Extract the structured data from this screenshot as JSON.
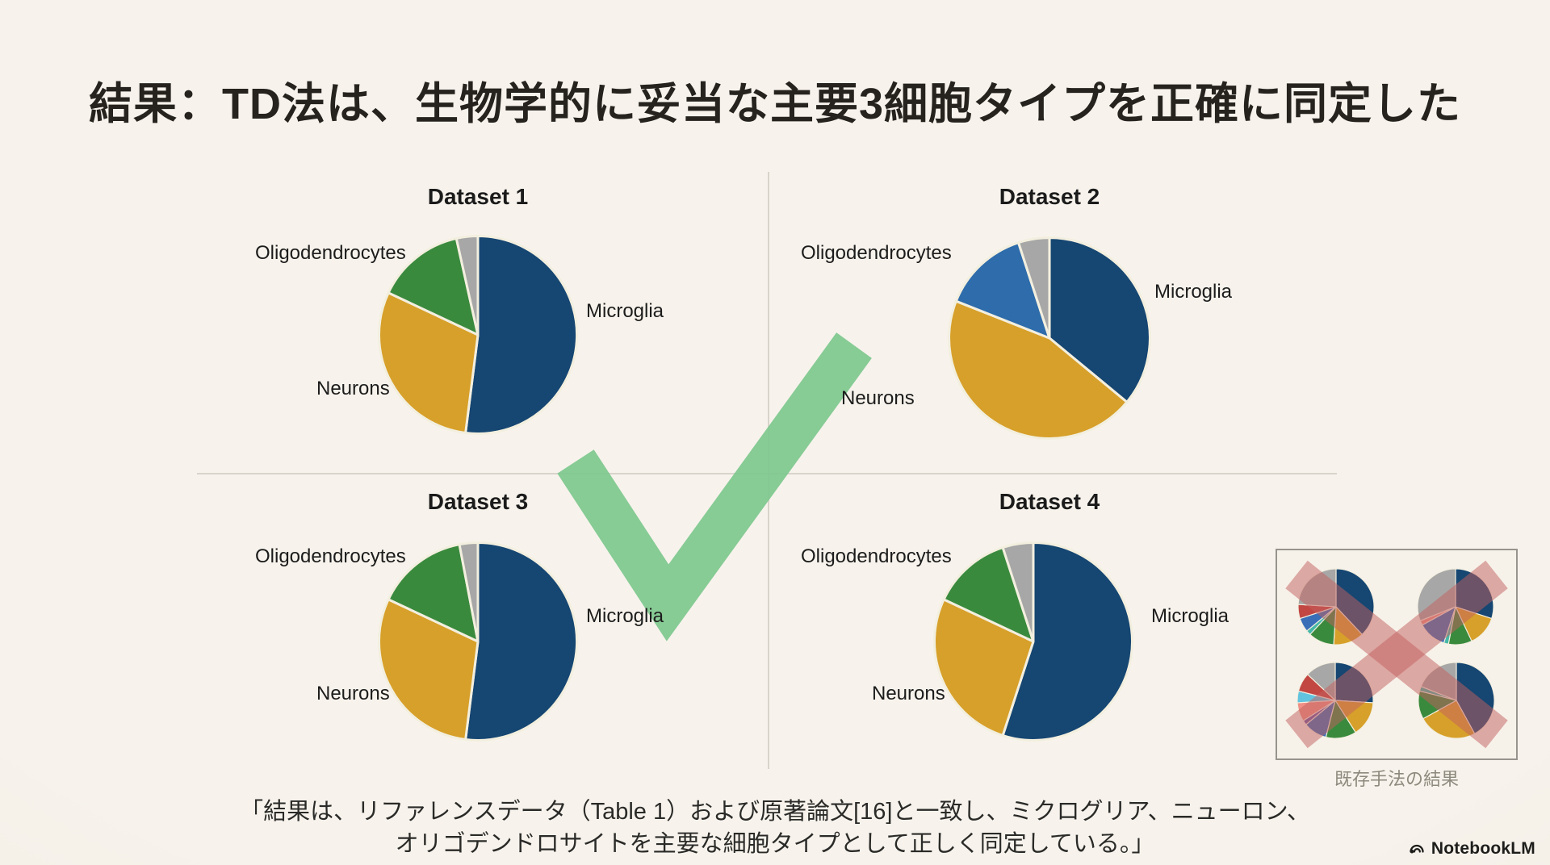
{
  "slide": {
    "title": "結果：TD法は、生物学的に妥当な主要3細胞タイプを正確に同定した",
    "caption_line1": "「結果は、リファレンスデータ（Table 1）および原著論文[16]と一致し、ミクログリア、ニューロン、",
    "caption_line2": "オリゴデンドロサイトを主要な細胞タイプとして正しく同定している。」",
    "brand": "NotebookLM"
  },
  "colors": {
    "background": "#f5f0e8",
    "navy": "#164672",
    "gold": "#d7a02a",
    "green": "#3a8a3e",
    "gray": "#a7a7a7",
    "medium_blue": "#2e6cab",
    "slice_border": "#f3efdf",
    "check_green": "#7ec78e",
    "x_red": "#c4605e",
    "divider": "#d8d4cb",
    "text_dark": "#26221e",
    "inset_caption_gray": "#8e897d"
  },
  "chart_data": {
    "type": "pie",
    "title": "結果：TD法は、生物学的に妥当な主要3細胞タイプを正確に同定した",
    "legend_position": "none",
    "datasets": [
      {
        "title": "Dataset 1",
        "labels": [
          "Microglia",
          "Neurons",
          "Oligodendrocytes",
          ""
        ],
        "values": [
          52,
          30,
          14.5,
          3.5
        ],
        "colors": [
          "#164672",
          "#d7a02a",
          "#3a8a3e",
          "#a7a7a7"
        ]
      },
      {
        "title": "Dataset 2",
        "labels": [
          "Microglia",
          "Neurons",
          "Oligodendrocytes",
          ""
        ],
        "values": [
          36,
          45,
          14,
          5
        ],
        "colors": [
          "#164672",
          "#d7a02a",
          "#2e6cab",
          "#a7a7a7"
        ]
      },
      {
        "title": "Dataset 3",
        "labels": [
          "Microglia",
          "Neurons",
          "Oligodendrocytes",
          ""
        ],
        "values": [
          52,
          30,
          15,
          3
        ],
        "colors": [
          "#164672",
          "#d7a02a",
          "#3a8a3e",
          "#a7a7a7"
        ]
      },
      {
        "title": "Dataset 4",
        "labels": [
          "Microglia",
          "Neurons",
          "Oligodendrocytes",
          ""
        ],
        "values": [
          55,
          27,
          13,
          5
        ],
        "colors": [
          "#164672",
          "#d7a02a",
          "#3a8a3e",
          "#a7a7a7"
        ]
      }
    ],
    "legacy_inset": {
      "caption": "既存手法の結果",
      "pies": [
        {
          "values": [
            38,
            13,
            11,
            2,
            6,
            6,
            24
          ],
          "colors": [
            "#164672",
            "#d7a02a",
            "#3a8a3e",
            "#46b8a8",
            "#3a6fb8",
            "#c24743",
            "#a7a7a7"
          ]
        },
        {
          "values": [
            30,
            13,
            10,
            2,
            12,
            2,
            31
          ],
          "colors": [
            "#164672",
            "#d7a02a",
            "#3a8a3e",
            "#46b8a8",
            "#3a6fb8",
            "#ef8f85",
            "#a7a7a7"
          ]
        },
        {
          "values": [
            26,
            15,
            13,
            10,
            2,
            8,
            5,
            8,
            13
          ],
          "colors": [
            "#164672",
            "#d7a02a",
            "#3a8a3e",
            "#3a6fb8",
            "#6f5ba5",
            "#ef8f85",
            "#62c3de",
            "#c24743",
            "#a7a7a7"
          ]
        },
        {
          "values": [
            42,
            25,
            12,
            2,
            19
          ],
          "colors": [
            "#164672",
            "#d7a02a",
            "#3a8a3e",
            "#46b8a8",
            "#a7a7a7"
          ]
        }
      ]
    }
  }
}
